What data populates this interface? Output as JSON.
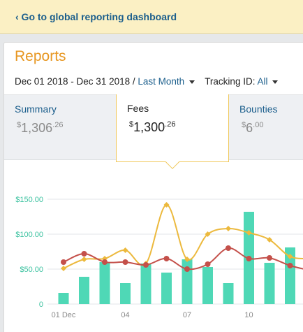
{
  "banner": {
    "link_label": "‹ Go to global reporting dashboard"
  },
  "reports": {
    "title": "Reports",
    "date_range": "Dec 01 2018 - Dec 31 2018",
    "separator": " / ",
    "period_label": "Last Month",
    "tracking_prefix": "Tracking ID: ",
    "tracking_value": "All"
  },
  "tabs": [
    {
      "label": "Summary",
      "currency": "$",
      "whole": "1,306",
      "decimal": ".26",
      "active": false
    },
    {
      "label": "Fees",
      "currency": "$",
      "whole": "1,300",
      "decimal": ".26",
      "active": true
    },
    {
      "label": "Bounties",
      "currency": "$",
      "whole": "6",
      "decimal": ".00",
      "active": false
    }
  ],
  "colors": {
    "bars": "#4fd8b6",
    "line_yellow": "#ecb93d",
    "line_red": "#c4504a",
    "accent": "#e79722",
    "link": "#1b5e8c",
    "axis_labels": "#3cc2a0"
  },
  "chart_data": {
    "type": "bar",
    "title": "",
    "xlabel": "",
    "ylabel": "",
    "ylim": [
      0,
      150
    ],
    "y_ticks": [
      "$150.00",
      "$100.00",
      "$50.00",
      "0"
    ],
    "x_tick_labels": [
      {
        "label": "01 Dec",
        "index": 0
      },
      {
        "label": "04",
        "index": 3
      },
      {
        "label": "07",
        "index": 6
      },
      {
        "label": "10",
        "index": 9
      }
    ],
    "categories": [
      "1",
      "2",
      "3",
      "4",
      "5",
      "6",
      "7",
      "8",
      "9",
      "10",
      "11",
      "12",
      "13"
    ],
    "series": [
      {
        "kind": "bar",
        "values": [
          16,
          39,
          60,
          30,
          58,
          45,
          64,
          53,
          30,
          132,
          59,
          81,
          null
        ]
      },
      {
        "kind": "line",
        "color": "yellow",
        "values": [
          51,
          64,
          65,
          77,
          58,
          142,
          64,
          100,
          108,
          102,
          92,
          68,
          65
        ]
      },
      {
        "kind": "line",
        "color": "red",
        "values": [
          60,
          72,
          60,
          60,
          56,
          65,
          50,
          57,
          80,
          65,
          66,
          55,
          48
        ]
      }
    ]
  }
}
